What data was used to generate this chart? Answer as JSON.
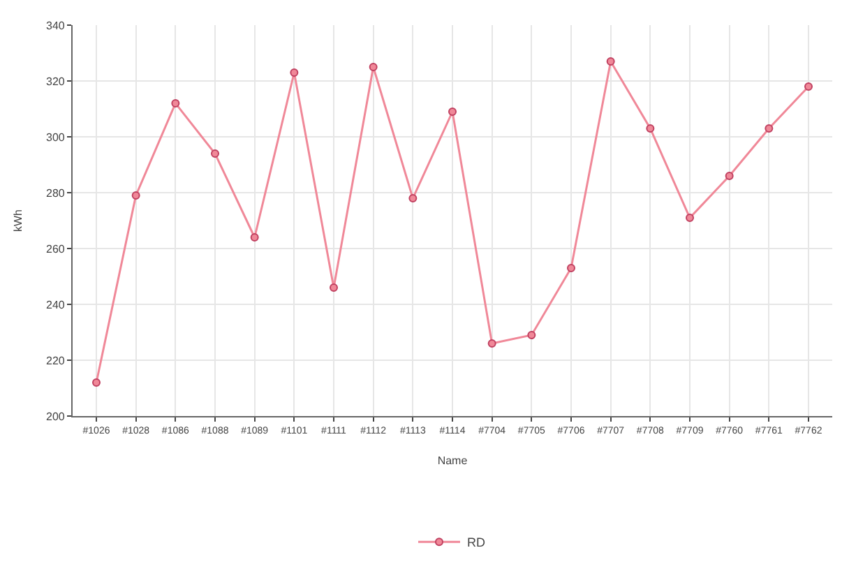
{
  "chart_data": {
    "type": "line",
    "xlabel": "Name",
    "ylabel": "kWh",
    "categories": [
      "#1026",
      "#1028",
      "#1086",
      "#1088",
      "#1089",
      "#1101",
      "#1111",
      "#1112",
      "#1113",
      "#1114",
      "#7704",
      "#7705",
      "#7706",
      "#7707",
      "#7708",
      "#7709",
      "#7760",
      "#7761",
      "#7762"
    ],
    "series": [
      {
        "name": "RD",
        "color": "#f08898",
        "values": [
          212,
          279,
          312,
          294,
          264,
          323,
          246,
          325,
          278,
          309,
          226,
          229,
          253,
          327,
          303,
          271,
          286,
          303,
          318
        ]
      }
    ],
    "ylim": [
      200,
      340
    ],
    "yticks": [
      200,
      220,
      240,
      260,
      280,
      300,
      320,
      340
    ],
    "grid": true,
    "legend": "bottom",
    "marker": "circle",
    "line_style": "solid"
  }
}
